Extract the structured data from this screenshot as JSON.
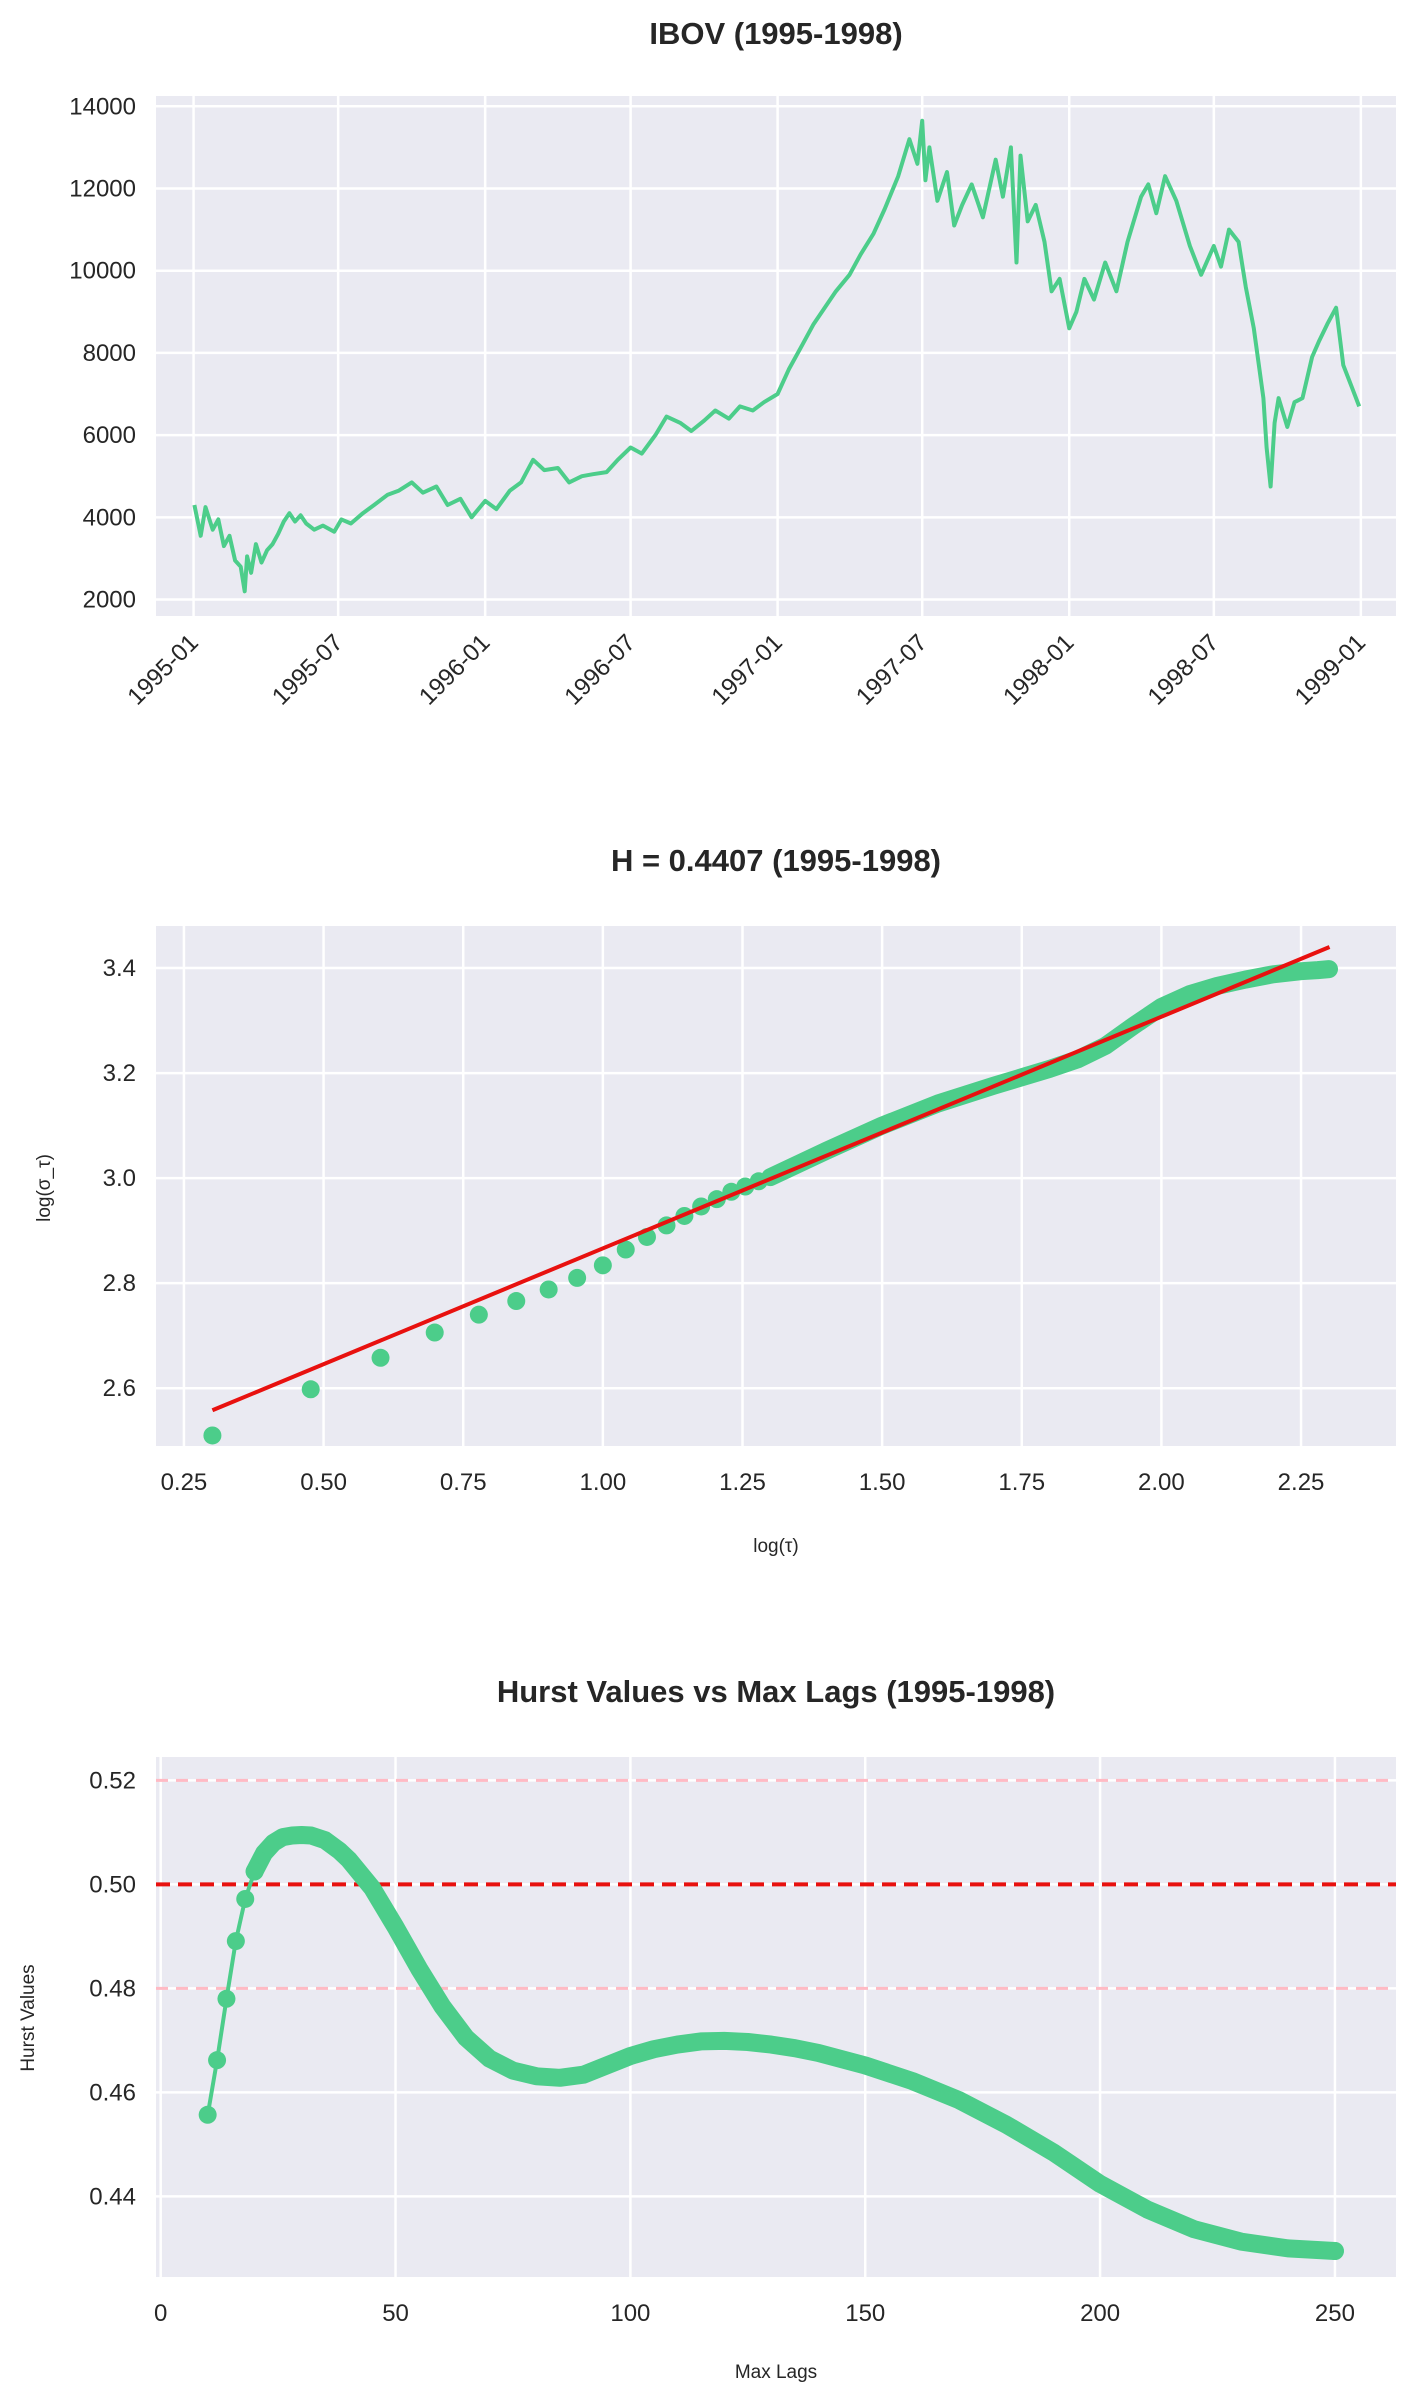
{
  "colors": {
    "series": "#4ccd8a",
    "fit": "#e8110f",
    "ref": "#e8110f",
    "band": "#ffbac4",
    "panel": "#eaeaf2"
  },
  "chart_data": [
    {
      "type": "line",
      "title": "IBOV (1995-1998)",
      "xlabel": "",
      "ylabel": "",
      "xlim": [
        "1994-11-15",
        "1999-02-14"
      ],
      "ylim": [
        1600,
        14250
      ],
      "xticks": [
        "1995-01",
        "1995-07",
        "1996-01",
        "1996-07",
        "1997-01",
        "1997-07",
        "1998-01",
        "1998-07",
        "1999-01"
      ],
      "yticks": [
        2000,
        4000,
        6000,
        8000,
        10000,
        12000,
        14000
      ],
      "grid": true,
      "series": [
        {
          "x": [
            "1995-01-02",
            "1995-01-10",
            "1995-01-16",
            "1995-01-25",
            "1995-02-01",
            "1995-02-08",
            "1995-02-15",
            "1995-02-22",
            "1995-03-01",
            "1995-03-06",
            "1995-03-09",
            "1995-03-14",
            "1995-03-20",
            "1995-03-27",
            "1995-04-03",
            "1995-04-10",
            "1995-04-17",
            "1995-04-24",
            "1995-05-01",
            "1995-05-08",
            "1995-05-15",
            "1995-05-22",
            "1995-06-01",
            "1995-06-12",
            "1995-06-26",
            "1995-07-05",
            "1995-07-17",
            "1995-08-01",
            "1995-08-15",
            "1995-09-01",
            "1995-09-15",
            "1995-10-01",
            "1995-10-15",
            "1995-11-01",
            "1995-11-15",
            "1995-12-01",
            "1995-12-15",
            "1996-01-01",
            "1996-01-15",
            "1996-02-01",
            "1996-02-15",
            "1996-03-01",
            "1996-03-15",
            "1996-04-01",
            "1996-04-15",
            "1996-05-01",
            "1996-05-15",
            "1996-06-01",
            "1996-06-15",
            "1996-07-01",
            "1996-07-15",
            "1996-08-01",
            "1996-08-15",
            "1996-09-01",
            "1996-09-15",
            "1996-10-01",
            "1996-10-15",
            "1996-11-01",
            "1996-11-15",
            "1996-12-01",
            "1996-12-15",
            "1997-01-01",
            "1997-01-15",
            "1997-02-01",
            "1997-02-15",
            "1997-03-01",
            "1997-03-15",
            "1997-04-01",
            "1997-04-15",
            "1997-05-01",
            "1997-05-15",
            "1997-06-01",
            "1997-06-15",
            "1997-06-25",
            "1997-07-01",
            "1997-07-05",
            "1997-07-10",
            "1997-07-20",
            "1997-08-01",
            "1997-08-10",
            "1997-08-20",
            "1997-09-01",
            "1997-09-15",
            "1997-10-01",
            "1997-10-10",
            "1997-10-20",
            "1997-10-27",
            "1997-11-01",
            "1997-11-10",
            "1997-11-20",
            "1997-12-01",
            "1997-12-10",
            "1997-12-20",
            "1998-01-01",
            "1998-01-10",
            "1998-01-20",
            "1998-02-01",
            "1998-02-15",
            "1998-03-01",
            "1998-03-15",
            "1998-04-01",
            "1998-04-10",
            "1998-04-20",
            "1998-05-01",
            "1998-05-15",
            "1998-06-01",
            "1998-06-15",
            "1998-07-01",
            "1998-07-10",
            "1998-07-20",
            "1998-08-01",
            "1998-08-10",
            "1998-08-20",
            "1998-09-01",
            "1998-09-05",
            "1998-09-10",
            "1998-09-15",
            "1998-09-20",
            "1998-10-01",
            "1998-10-10",
            "1998-10-20",
            "1998-11-01",
            "1998-11-10",
            "1998-11-20",
            "1998-12-01",
            "1998-12-10",
            "1998-12-20",
            "1998-12-30"
          ],
          "y": [
            4300,
            3550,
            4250,
            3700,
            3950,
            3300,
            3550,
            2950,
            2800,
            2200,
            3050,
            2650,
            3350,
            2900,
            3200,
            3350,
            3600,
            3900,
            4100,
            3900,
            4050,
            3850,
            3700,
            3800,
            3650,
            3950,
            3850,
            4100,
            4300,
            4550,
            4650,
            4850,
            4600,
            4750,
            4300,
            4450,
            4000,
            4400,
            4200,
            4650,
            4850,
            5400,
            5150,
            5200,
            4850,
            5000,
            5050,
            5100,
            5400,
            5700,
            5550,
            6000,
            6450,
            6300,
            6100,
            6350,
            6600,
            6400,
            6700,
            6600,
            6800,
            7000,
            7600,
            8200,
            8700,
            9100,
            9500,
            9900,
            10400,
            10900,
            11500,
            12300,
            13200,
            12600,
            13650,
            12200,
            13000,
            11700,
            12400,
            11100,
            11600,
            12100,
            11300,
            12700,
            11800,
            13000,
            10200,
            12800,
            11200,
            11600,
            10700,
            9500,
            9800,
            8600,
            9000,
            9800,
            9300,
            10200,
            9500,
            10700,
            11800,
            12100,
            11400,
            12300,
            11700,
            10600,
            9900,
            10600,
            10100,
            11000,
            10700,
            9600,
            8600,
            6900,
            5700,
            4750,
            6300,
            6900,
            6200,
            6800,
            6900,
            7900,
            8300,
            8700,
            9100,
            7700,
            7200,
            6700
          ]
        }
      ]
    },
    {
      "type": "scatter",
      "title": "H = 0.4407 (1995-1998)",
      "xlabel": "log(τ)",
      "ylabel": "log(σ_τ)",
      "xlim": [
        0.2,
        2.42
      ],
      "ylim": [
        2.49,
        3.48
      ],
      "xticks": [
        "0.25",
        "0.50",
        "0.75",
        "1.00",
        "1.25",
        "1.50",
        "1.75",
        "2.00",
        "2.25"
      ],
      "yticks": [
        "2.6",
        "2.8",
        "3.0",
        "3.2",
        "3.4"
      ],
      "grid": true,
      "points": {
        "x": [
          0.301,
          0.477,
          0.602,
          0.699,
          0.778,
          0.845,
          0.903,
          0.954,
          1.0,
          1.041,
          1.079,
          1.114,
          1.146,
          1.176,
          1.204,
          1.23,
          1.255,
          1.279
        ],
        "y": [
          2.51,
          2.598,
          2.658,
          2.706,
          2.74,
          2.766,
          2.788,
          2.81,
          2.834,
          2.864,
          2.888,
          2.91,
          2.928,
          2.946,
          2.96,
          2.974,
          2.984,
          2.994
        ]
      },
      "dense_curve": {
        "x": [
          1.3,
          1.4,
          1.5,
          1.6,
          1.7,
          1.75,
          1.8,
          1.85,
          1.9,
          1.95,
          2.0,
          2.05,
          2.1,
          2.15,
          2.2,
          2.25,
          2.28,
          2.3
        ],
        "y": [
          3.002,
          3.052,
          3.1,
          3.142,
          3.176,
          3.192,
          3.208,
          3.226,
          3.252,
          3.29,
          3.326,
          3.35,
          3.366,
          3.378,
          3.388,
          3.394,
          3.396,
          3.398
        ]
      },
      "fit_line": {
        "x": [
          0.301,
          2.301
        ],
        "y": [
          2.558,
          3.44
        ]
      }
    },
    {
      "type": "scatter",
      "title": "Hurst Values vs Max Lags (1995-1998)",
      "xlabel": "Max Lags",
      "ylabel": "Hurst Values",
      "xlim": [
        -1,
        263
      ],
      "ylim": [
        0.4245,
        0.5245
      ],
      "xticks": [
        "0",
        "50",
        "100",
        "150",
        "200",
        "250"
      ],
      "yticks": [
        "0.44",
        "0.46",
        "0.48",
        "0.50",
        "0.52"
      ],
      "grid": true,
      "reference_lines": [
        {
          "y": 0.5,
          "style": "dashed"
        },
        {
          "y": 0.52,
          "style": "dashed-light"
        },
        {
          "y": 0.48,
          "style": "dashed-light"
        }
      ],
      "points": {
        "x": [
          10,
          12,
          14,
          16,
          18,
          20,
          22,
          24,
          26,
          28,
          30,
          32,
          35,
          38,
          40,
          45,
          50,
          55,
          60,
          65,
          70,
          75,
          80,
          85,
          90,
          95,
          100,
          105,
          110,
          115,
          120,
          125,
          130,
          135,
          140,
          150,
          160,
          170,
          180,
          190,
          200,
          210,
          220,
          230,
          240,
          250
        ],
        "y": [
          0.4557,
          0.4662,
          0.478,
          0.4891,
          0.4972,
          0.5025,
          0.506,
          0.508,
          0.5091,
          0.5094,
          0.5095,
          0.5094,
          0.5085,
          0.5065,
          0.5048,
          0.4993,
          0.4918,
          0.4838,
          0.4765,
          0.4705,
          0.4665,
          0.4642,
          0.4631,
          0.4628,
          0.4634,
          0.4652,
          0.467,
          0.4683,
          0.4692,
          0.4698,
          0.4699,
          0.4697,
          0.4692,
          0.4685,
          0.4676,
          0.4652,
          0.4622,
          0.4585,
          0.4538,
          0.4485,
          0.4424,
          0.4375,
          0.4337,
          0.4313,
          0.43,
          0.4295
        ]
      }
    }
  ]
}
